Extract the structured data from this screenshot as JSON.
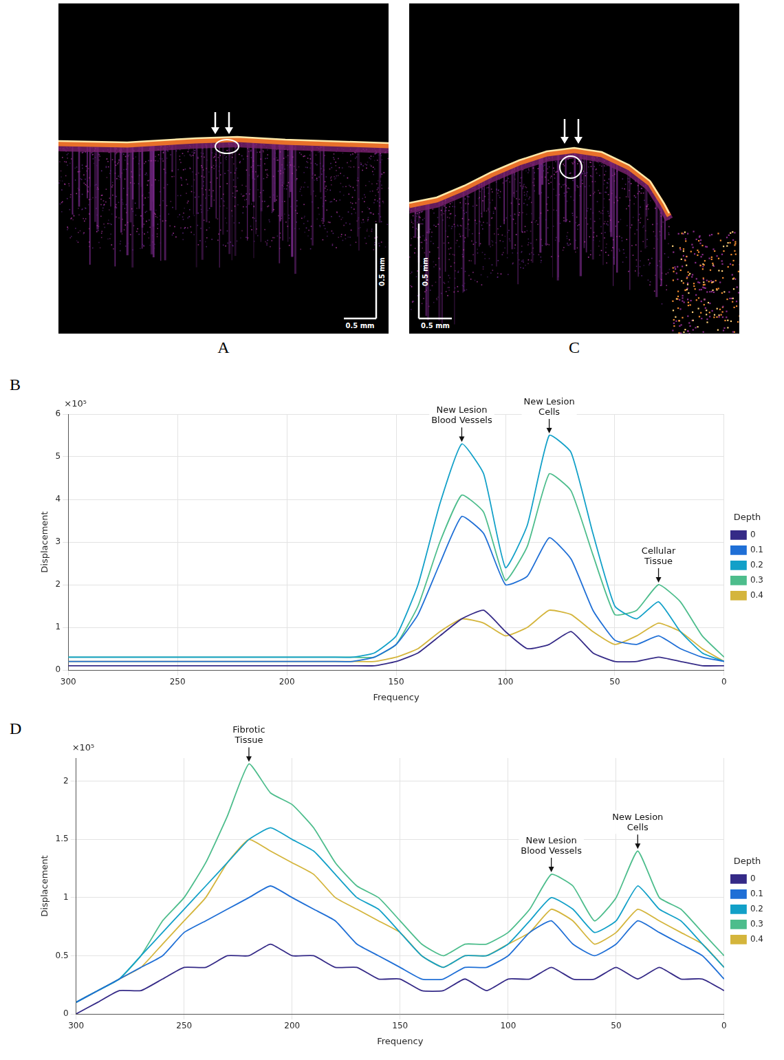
{
  "images": [
    {
      "label": "A",
      "scale_bar_x": "0.5 mm",
      "scale_bar_y": "0.5 mm"
    },
    {
      "label": "C",
      "scale_bar_x": "0.5 mm",
      "scale_bar_y": "0.5 mm"
    }
  ],
  "chart_data": [
    {
      "panel": "B",
      "type": "line",
      "x_label": "Frequency",
      "y_label": "Displacement",
      "z_label": "Depth",
      "x": [
        0,
        10,
        20,
        30,
        40,
        50,
        60,
        70,
        80,
        90,
        100,
        110,
        120,
        130,
        140,
        150,
        160,
        170,
        180,
        190,
        200,
        210,
        220,
        230,
        240,
        250,
        260,
        270,
        280,
        290,
        300
      ],
      "xlim": [
        0,
        300
      ],
      "xticks": [
        0,
        50,
        100,
        150,
        200,
        250,
        300
      ],
      "ylim": [
        0,
        6
      ],
      "yticks": [
        0,
        1,
        2,
        3,
        4,
        5,
        6
      ],
      "grid": true,
      "legend": "right",
      "series": [
        {
          "name": "0",
          "color": "#352a87",
          "values": [
            0.1,
            0.1,
            0.2,
            0.3,
            0.2,
            0.2,
            0.4,
            0.9,
            0.6,
            0.5,
            0.9,
            1.4,
            1.2,
            0.8,
            0.4,
            0.2,
            0.1,
            0.1,
            0.1,
            0.1,
            0.1,
            0.1,
            0.1,
            0.1,
            0.1,
            0.1,
            0.1,
            0.1,
            0.1,
            0.1,
            0.1
          ]
        },
        {
          "name": "0.1",
          "color": "#1f6fd6",
          "values": [
            0.2,
            0.3,
            0.5,
            0.8,
            0.6,
            0.7,
            1.4,
            2.6,
            3.1,
            2.2,
            2.0,
            3.2,
            3.6,
            2.5,
            1.3,
            0.6,
            0.3,
            0.2,
            0.2,
            0.2,
            0.2,
            0.2,
            0.2,
            0.2,
            0.2,
            0.2,
            0.2,
            0.2,
            0.2,
            0.2,
            0.2
          ]
        },
        {
          "name": "0.2",
          "color": "#12a0c8",
          "values": [
            0.2,
            0.4,
            0.9,
            1.6,
            1.2,
            1.5,
            3.2,
            5.1,
            5.5,
            3.4,
            2.4,
            4.6,
            5.3,
            3.9,
            2.0,
            0.8,
            0.4,
            0.3,
            0.3,
            0.3,
            0.3,
            0.3,
            0.3,
            0.3,
            0.3,
            0.3,
            0.3,
            0.3,
            0.3,
            0.3,
            0.3
          ]
        },
        {
          "name": "0.3",
          "color": "#4dbd8c",
          "values": [
            0.3,
            0.8,
            1.6,
            2.0,
            1.4,
            1.3,
            2.7,
            4.2,
            4.6,
            2.9,
            2.1,
            3.7,
            4.1,
            3.0,
            1.5,
            0.6,
            0.3,
            0.3,
            0.3,
            0.3,
            0.3,
            0.3,
            0.3,
            0.3,
            0.3,
            0.3,
            0.3,
            0.3,
            0.3,
            0.3,
            0.3
          ]
        },
        {
          "name": "0.4",
          "color": "#d4b53c",
          "values": [
            0.2,
            0.5,
            0.9,
            1.1,
            0.8,
            0.6,
            0.9,
            1.3,
            1.4,
            1.0,
            0.8,
            1.1,
            1.2,
            0.9,
            0.5,
            0.3,
            0.2,
            0.2,
            0.2,
            0.2,
            0.2,
            0.2,
            0.2,
            0.2,
            0.2,
            0.2,
            0.2,
            0.2,
            0.2,
            0.2,
            0.2
          ]
        }
      ],
      "annotations": [
        {
          "text": "×10⁵"
        },
        {
          "text": "New Lesion Blood Vessels",
          "x": 120,
          "y": 5.3
        },
        {
          "text": "New Lesion Cells",
          "x": 80,
          "y": 5.5
        },
        {
          "text": "Cellular Tissue",
          "x": 30,
          "y": 2.0
        }
      ]
    },
    {
      "panel": "D",
      "type": "line",
      "x_label": "Frequency",
      "y_label": "Displacement",
      "z_label": "Depth",
      "x": [
        0,
        10,
        20,
        30,
        40,
        50,
        60,
        70,
        80,
        90,
        100,
        110,
        120,
        130,
        140,
        150,
        160,
        170,
        180,
        190,
        200,
        210,
        220,
        230,
        240,
        250,
        260,
        270,
        280,
        290,
        300
      ],
      "xlim": [
        0,
        300
      ],
      "xticks": [
        0,
        50,
        100,
        150,
        200,
        250,
        300
      ],
      "ylim": [
        0,
        2.2
      ],
      "yticks": [
        0,
        0.5,
        1,
        1.5,
        2
      ],
      "grid": true,
      "legend": "right",
      "series": [
        {
          "name": "0",
          "color": "#352a87",
          "values": [
            0.2,
            0.3,
            0.3,
            0.4,
            0.3,
            0.4,
            0.3,
            0.3,
            0.4,
            0.3,
            0.3,
            0.2,
            0.3,
            0.2,
            0.2,
            0.3,
            0.3,
            0.4,
            0.4,
            0.5,
            0.5,
            0.6,
            0.5,
            0.5,
            0.4,
            0.4,
            0.3,
            0.2,
            0.2,
            0.1,
            0.0
          ]
        },
        {
          "name": "0.1",
          "color": "#1f6fd6",
          "values": [
            0.3,
            0.5,
            0.6,
            0.7,
            0.8,
            0.6,
            0.5,
            0.6,
            0.8,
            0.7,
            0.5,
            0.4,
            0.4,
            0.3,
            0.3,
            0.4,
            0.5,
            0.6,
            0.8,
            0.9,
            1.0,
            1.1,
            1.0,
            0.9,
            0.8,
            0.7,
            0.5,
            0.4,
            0.3,
            0.2,
            0.1
          ]
        },
        {
          "name": "0.2",
          "color": "#12a0c8",
          "values": [
            0.4,
            0.6,
            0.8,
            0.9,
            1.1,
            0.8,
            0.7,
            0.9,
            1.0,
            0.8,
            0.6,
            0.5,
            0.5,
            0.4,
            0.5,
            0.7,
            0.9,
            1.0,
            1.2,
            1.4,
            1.5,
            1.6,
            1.5,
            1.3,
            1.1,
            0.9,
            0.7,
            0.5,
            0.3,
            0.2,
            0.1
          ]
        },
        {
          "name": "0.3",
          "color": "#4dbd8c",
          "values": [
            0.5,
            0.7,
            0.9,
            1.0,
            1.4,
            1.0,
            0.8,
            1.1,
            1.2,
            0.9,
            0.7,
            0.6,
            0.6,
            0.5,
            0.6,
            0.8,
            1.0,
            1.1,
            1.3,
            1.6,
            1.8,
            1.9,
            2.15,
            1.7,
            1.3,
            1.0,
            0.8,
            0.5,
            0.3,
            0.2,
            0.1
          ]
        },
        {
          "name": "0.4",
          "color": "#d4b53c",
          "values": [
            0.4,
            0.6,
            0.7,
            0.8,
            0.9,
            0.7,
            0.6,
            0.8,
            0.9,
            0.7,
            0.6,
            0.5,
            0.5,
            0.4,
            0.5,
            0.7,
            0.8,
            0.9,
            1.0,
            1.2,
            1.3,
            1.4,
            1.5,
            1.3,
            1.0,
            0.8,
            0.6,
            0.4,
            0.3,
            0.2,
            0.1
          ]
        }
      ],
      "annotations": [
        {
          "text": "×10⁵"
        },
        {
          "text": "Fibrotic Tissue",
          "x": 220,
          "y": 2.15
        },
        {
          "text": "New Lesion Blood Vessels",
          "x": 80,
          "y": 1.2
        },
        {
          "text": "New Lesion Cells",
          "x": 40,
          "y": 1.4
        }
      ]
    }
  ]
}
